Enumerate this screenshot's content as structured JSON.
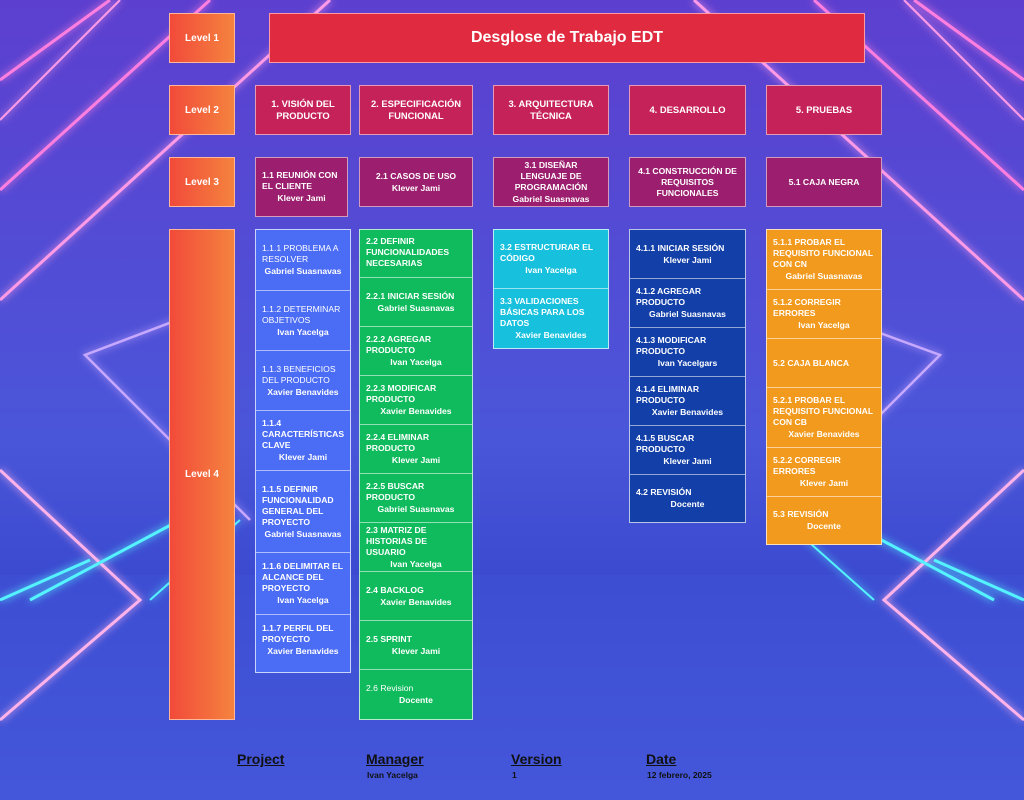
{
  "title": "Desglose de Trabajo EDT",
  "levels": [
    "Level 1",
    "Level 2",
    "Level 3",
    "Level 4"
  ],
  "level2": [
    "1. VISIÓN DEL PRODUCTO",
    "2. ESPECIFICACIÓN FUNCIONAL",
    "3. ARQUITECTURA TÉCNICA",
    "4. DESARROLLO",
    "5. PRUEBAS"
  ],
  "level3": [
    {
      "task": "1.1 REUNIÓN CON EL CLIENTE",
      "owner": "Klever Jami"
    },
    {
      "task": "2.1 CASOS DE USO",
      "owner": "Klever Jami"
    },
    {
      "task": "3.1 DISEÑAR LENGUAJE DE PROGRAMACIÓN",
      "owner": "Gabriel Suasnavas"
    },
    {
      "task": "4.1 CONSTRUCCIÓN DE REQUISITOS FUNCIONALES",
      "owner": ""
    },
    {
      "task": "5.1 CAJA NEGRA",
      "owner": ""
    }
  ],
  "level4": [
    [
      {
        "task": "1.1.1 PROBLEMA A RESOLVER",
        "owner": "Gabriel Suasnavas"
      },
      {
        "task": "1.1.2 DETERMINAR OBJETIVOS",
        "owner": "Ivan Yacelga"
      },
      {
        "task": "1.1.3 BENEFICIOS DEL PRODUCTO",
        "owner": "Xavier Benavides"
      },
      {
        "task": "1.1.4 CARACTERÍSTICAS CLAVE",
        "owner": "Klever Jami"
      },
      {
        "task": "1.1.5 DEFINIR FUNCIONALIDAD GENERAL DEL PROYECTO",
        "owner": "Gabriel Suasnavas"
      },
      {
        "task": "1.1.6 DELIMITAR EL ALCANCE DEL PROYECTO",
        "owner": "Ivan Yacelga"
      },
      {
        "task": "1.1.7 PERFIL DEL PROYECTO",
        "owner": "Xavier Benavides"
      }
    ],
    [
      {
        "task": "2.2 DEFINIR FUNCIONALIDADES NECESARIAS",
        "owner": ""
      },
      {
        "task": "2.2.1 INICIAR SESIÓN",
        "owner": "Gabriel Suasnavas"
      },
      {
        "task": "2.2.2 AGREGAR PRODUCTO",
        "owner": "Ivan Yacelga"
      },
      {
        "task": "2.2.3 MODIFICAR PRODUCTO",
        "owner": "Xavier Benavides"
      },
      {
        "task": "2.2.4 ELIMINAR PRODUCTO",
        "owner": "Klever Jami"
      },
      {
        "task": "2.2.5 BUSCAR PRODUCTO",
        "owner": "Gabriel Suasnavas"
      },
      {
        "task": "2.3 MATRIZ DE HISTORIAS DE USUARIO",
        "owner": "Ivan Yacelga"
      },
      {
        "task": "2.4 BACKLOG",
        "owner": "Xavier Benavides"
      },
      {
        "task": "2.5 SPRINT",
        "owner": "Klever Jami"
      },
      {
        "task": "2.6 Revision",
        "owner": "Docente"
      }
    ],
    [
      {
        "task": "3.2 ESTRUCTURAR EL CÓDIGO",
        "owner": "Ivan Yacelga"
      },
      {
        "task": "3.3 VALIDACIONES BÁSICAS PARA LOS DATOS",
        "owner": "Xavier Benavides"
      }
    ],
    [
      {
        "task": "4.1.1 INICIAR SESIÓN",
        "owner": "Klever Jami"
      },
      {
        "task": "4.1.2 AGREGAR PRODUCTO",
        "owner": "Gabriel Suasnavas"
      },
      {
        "task": "4.1.3 MODIFICAR PRODUCTO",
        "owner": "Ivan Yacelgars"
      },
      {
        "task": "4.1.4 ELIMINAR PRODUCTO",
        "owner": "Xavier Benavides"
      },
      {
        "task": "4.1.5 BUSCAR PRODUCTO",
        "owner": "Klever Jami"
      },
      {
        "task": "4.2 REVISIÓN",
        "owner": "Docente"
      }
    ],
    [
      {
        "task": "5.1.1 PROBAR EL REQUISITO FUNCIONAL CON CN",
        "owner": "Gabriel Suasnavas"
      },
      {
        "task": "5.1.2 CORREGIR ERRORES",
        "owner": "Ivan Yacelga"
      },
      {
        "task": "5.2 CAJA BLANCA",
        "owner": ""
      },
      {
        "task": "5.2.1 PROBAR EL REQUISITO FUNCIONAL CON CB",
        "owner": "Xavier Benavides"
      },
      {
        "task": "5.2.2 CORREGIR ERRORES",
        "owner": "Klever Jami"
      },
      {
        "task": "5.3 REVISIÓN",
        "owner": "Docente"
      }
    ]
  ],
  "footer": {
    "project_label": "Project",
    "project_value": "",
    "manager_label": "Manager",
    "manager_value": "Ivan Yacelga",
    "version_label": "Version",
    "version_value": "1",
    "date_label": "Date",
    "date_value": "12 febrero, 2025"
  },
  "colors": {
    "level_label": "#f4603c",
    "title": "#e02a3f",
    "level2": "#c6225a",
    "level3": "#9b1f6e",
    "column1": "#4b6cf4",
    "column2": "#0fbb5c",
    "column3": "#17c0dd",
    "column4": "#123fa8",
    "column5": "#f29a1d",
    "neon_pink": "#ff6ad5",
    "neon_cyan": "#55f2ff"
  }
}
